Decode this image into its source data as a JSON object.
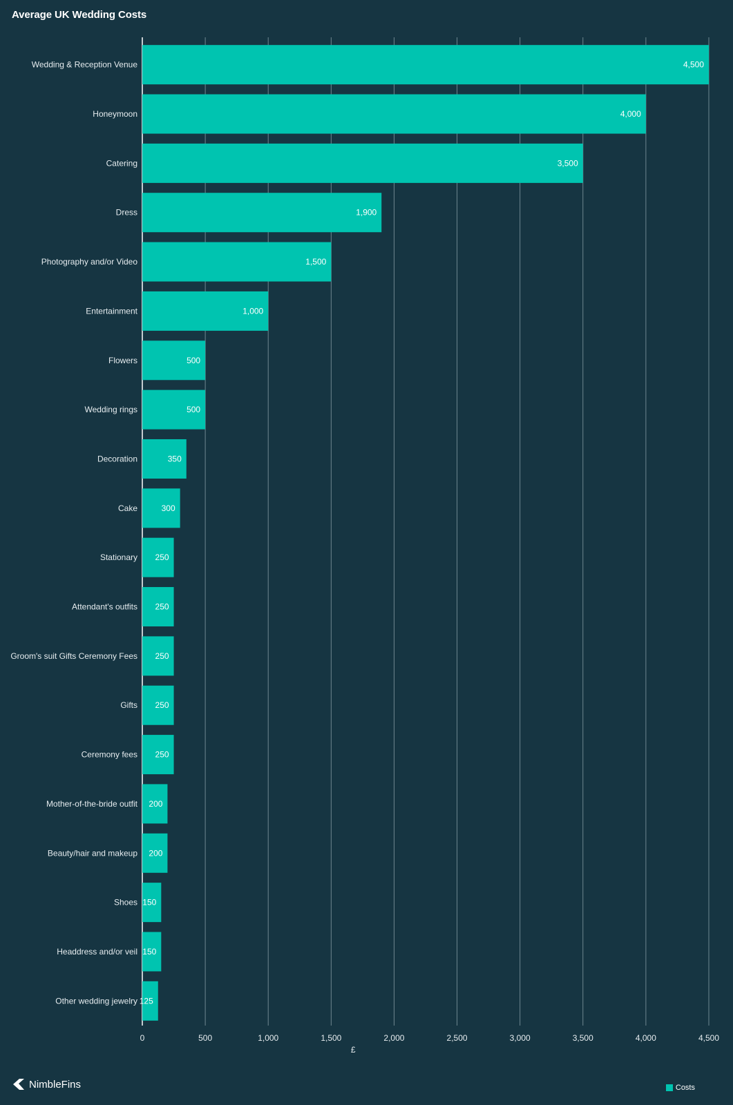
{
  "colors": {
    "background": "#163542",
    "bar": "#00c4b0",
    "gridline": "#6f8790",
    "text": "#e6ecef"
  },
  "brand": {
    "name": "NimbleFins",
    "icon": "nimblefins-logo-icon"
  },
  "legend": {
    "label": "Costs"
  },
  "chart_data": {
    "type": "bar",
    "orientation": "horizontal",
    "title": "Average UK Wedding Costs",
    "xlabel": "£",
    "ylabel": "",
    "xlim": [
      0,
      4500
    ],
    "xticks": [
      0,
      500,
      1000,
      1500,
      2000,
      2500,
      3000,
      3500,
      4000,
      4500
    ],
    "xtick_labels": [
      "0",
      "500",
      "1,000",
      "1,500",
      "2,000",
      "2,500",
      "3,000",
      "3,500",
      "4,000",
      "4,500"
    ],
    "grid": true,
    "legend_position": "bottom-right",
    "series": [
      {
        "name": "Costs",
        "values": [
          4500,
          4000,
          3500,
          1900,
          1500,
          1000,
          500,
          500,
          350,
          300,
          250,
          250,
          250,
          250,
          250,
          200,
          200,
          150,
          150,
          125
        ]
      }
    ],
    "value_labels": [
      "4,500",
      "4,000",
      "3,500",
      "1,900",
      "1,500",
      "1,000",
      "500",
      "500",
      "350",
      "300",
      "250",
      "250",
      "250",
      "250",
      "250",
      "200",
      "200",
      "150",
      "150",
      "125"
    ],
    "categories": [
      "Wedding & Reception Venue",
      "Honeymoon",
      "Catering",
      "Dress",
      "Photography and/or Video",
      "Entertainment",
      "Flowers",
      "Wedding rings",
      "Decoration",
      "Cake",
      "Stationary",
      "Attendant's outfits",
      "Groom's suit Gifts Ceremony Fees",
      "Gifts",
      "Ceremony fees",
      "Mother-of-the-bride outfit",
      "Beauty/hair and makeup",
      "Shoes",
      "Headdress and/or veil",
      "Other wedding jewelry"
    ]
  }
}
